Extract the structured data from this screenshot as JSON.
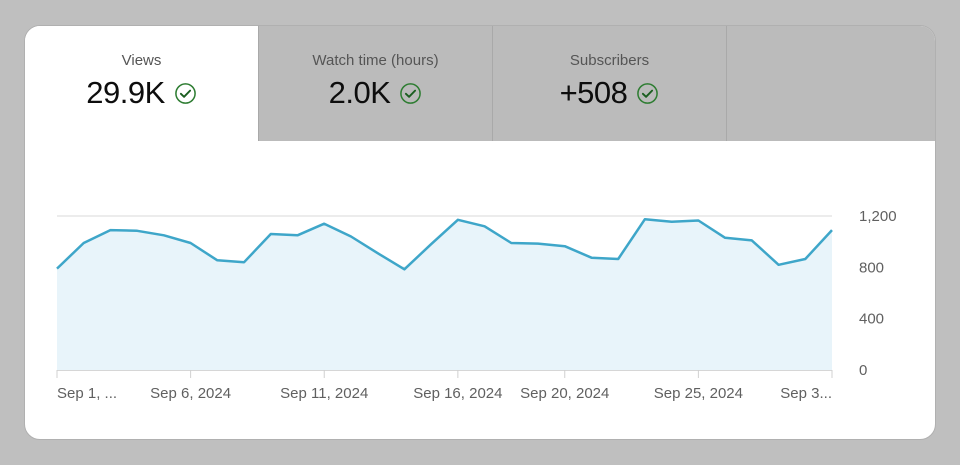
{
  "tabs": [
    {
      "label": "Views",
      "value": "29.9K",
      "status_icon": "check-circle-icon",
      "active": true
    },
    {
      "label": "Watch time (hours)",
      "value": "2.0K",
      "status_icon": "check-circle-icon",
      "active": false
    },
    {
      "label": "Subscribers",
      "value": "+508",
      "status_icon": "check-circle-icon",
      "active": false
    },
    {
      "label": "",
      "value": "",
      "active": false
    }
  ],
  "colors": {
    "line": "#3ea6c9",
    "fill": "#e8f4fa",
    "check": "#2e7d32",
    "grid": "#e0e0e0",
    "axis_text": "#606060"
  },
  "chart_data": {
    "type": "area",
    "title": "Views",
    "xlabel": "",
    "ylabel": "",
    "ylim": [
      0,
      1200
    ],
    "y_ticks": [
      "1,200",
      "800",
      "400",
      "0"
    ],
    "y_tick_values": [
      1200,
      800,
      400,
      0
    ],
    "x_tick_labels": [
      "Sep 1, ...",
      "Sep 6, 2024",
      "Sep 11, 2024",
      "Sep 16, 2024",
      "Sep 20, 2024",
      "Sep 25, 2024",
      "Sep 3..."
    ],
    "x_tick_days": [
      1,
      6,
      11,
      16,
      20,
      25,
      30
    ],
    "grid": true,
    "legend": "none",
    "categories": [
      "Sep 1",
      "Sep 2",
      "Sep 3",
      "Sep 4",
      "Sep 5",
      "Sep 6",
      "Sep 7",
      "Sep 8",
      "Sep 9",
      "Sep 10",
      "Sep 11",
      "Sep 12",
      "Sep 13",
      "Sep 14",
      "Sep 15",
      "Sep 16",
      "Sep 17",
      "Sep 18",
      "Sep 19",
      "Sep 20",
      "Sep 21",
      "Sep 22",
      "Sep 23",
      "Sep 24",
      "Sep 25",
      "Sep 26",
      "Sep 27",
      "Sep 28",
      "Sep 29",
      "Sep 30"
    ],
    "series": [
      {
        "name": "Views",
        "values": [
          790,
          990,
          1090,
          1085,
          1050,
          990,
          855,
          840,
          1060,
          1050,
          1140,
          1040,
          910,
          785,
          980,
          1170,
          1120,
          990,
          985,
          965,
          875,
          865,
          1175,
          1155,
          1165,
          1030,
          1010,
          820,
          865,
          1090
        ]
      }
    ]
  }
}
